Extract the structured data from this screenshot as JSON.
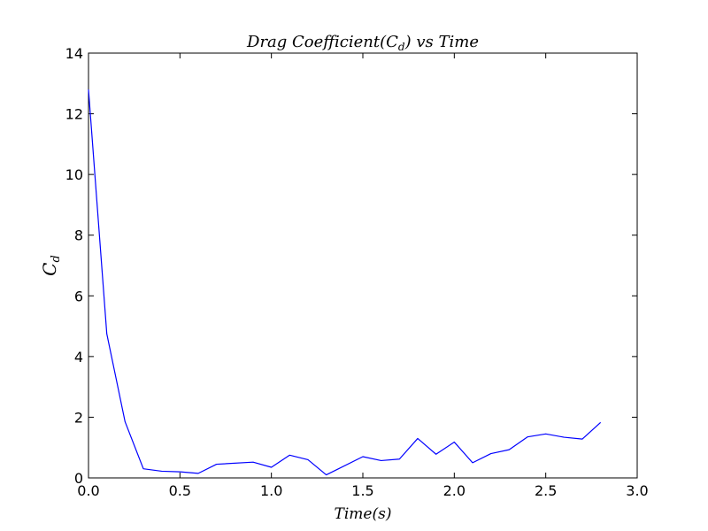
{
  "chart_data": {
    "type": "line",
    "title": "Drag Coefficient(C_d) vs Time",
    "title_parts": {
      "pre": "Drag Coefficient(",
      "sym": "C",
      "sub": "d",
      "post": ") vs Time"
    },
    "xlabel": "Time(s)",
    "ylabel_parts": {
      "sym": "C",
      "sub": "d"
    },
    "xlim": [
      0,
      3.0
    ],
    "ylim": [
      0,
      14
    ],
    "x_ticks": [
      "0.0",
      "0.5",
      "1.0",
      "1.5",
      "2.0",
      "2.5",
      "3.0"
    ],
    "y_ticks": [
      "0",
      "2",
      "4",
      "6",
      "8",
      "10",
      "12",
      "14"
    ],
    "grid": false,
    "series": [
      {
        "color": "#0000ff",
        "x": [
          0.0,
          0.1,
          0.2,
          0.3,
          0.4,
          0.5,
          0.6,
          0.7,
          0.9,
          1.0,
          1.1,
          1.2,
          1.3,
          1.5,
          1.6,
          1.7,
          1.8,
          1.9,
          2.0,
          2.1,
          2.2,
          2.3,
          2.4,
          2.5,
          2.6,
          2.7,
          2.8
        ],
        "y": [
          12.8,
          4.75,
          1.85,
          0.3,
          0.22,
          0.2,
          0.15,
          0.45,
          0.52,
          0.35,
          0.75,
          0.6,
          0.1,
          0.7,
          0.57,
          0.62,
          1.3,
          0.78,
          1.18,
          0.5,
          0.8,
          0.93,
          1.35,
          1.45,
          1.34,
          1.28,
          1.83
        ]
      }
    ]
  }
}
